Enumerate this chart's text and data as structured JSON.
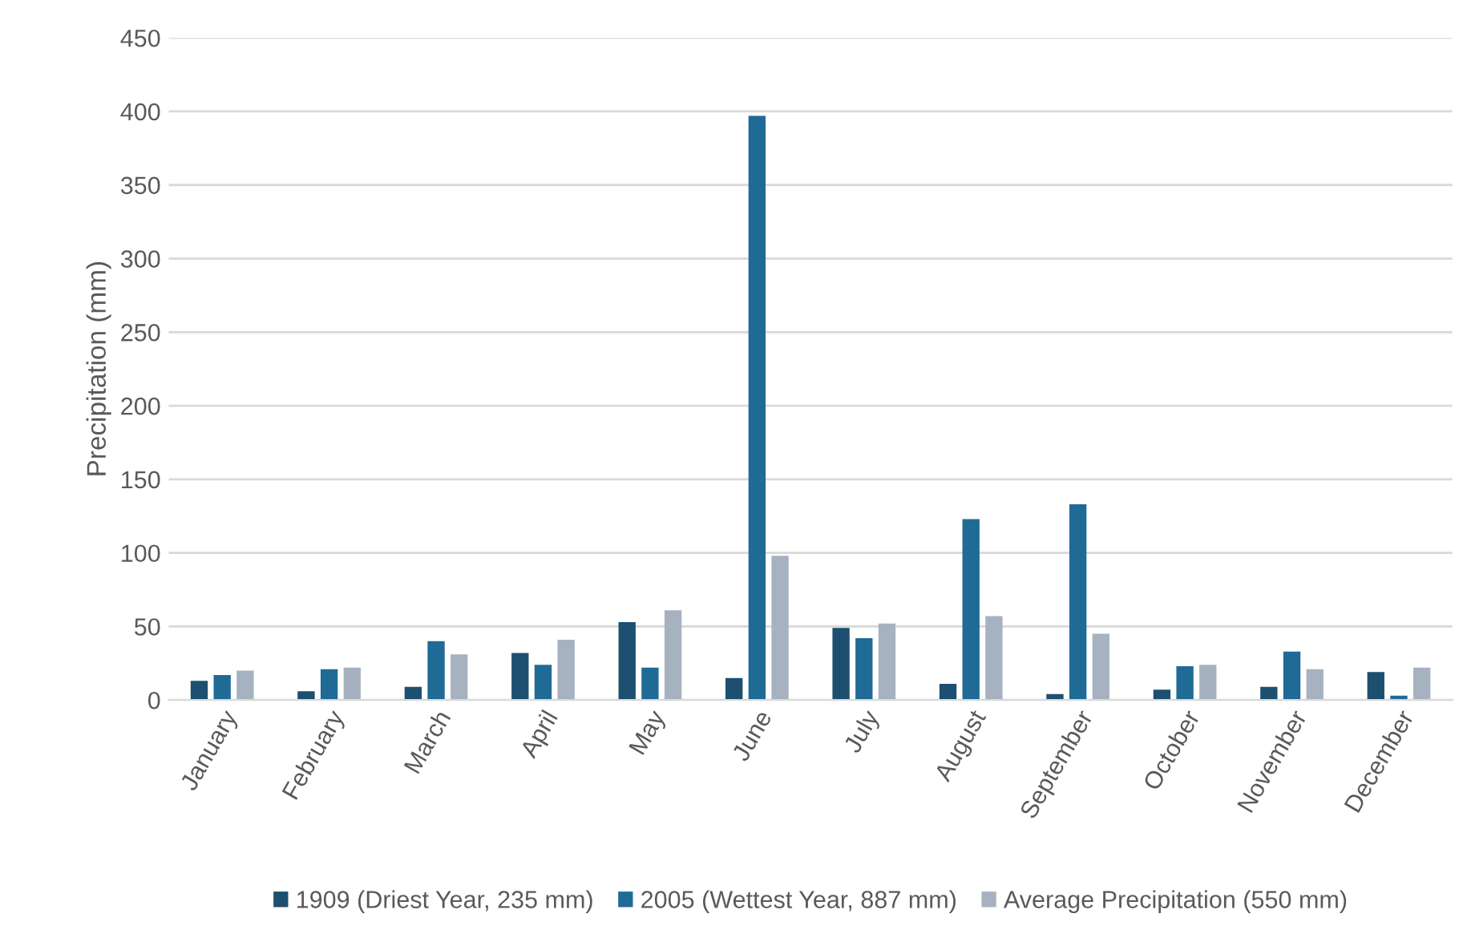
{
  "chart_data": {
    "type": "bar",
    "ylabel": "Precipitation (mm)",
    "categories": [
      "January",
      "February",
      "March",
      "April",
      "May",
      "June",
      "July",
      "August",
      "September",
      "October",
      "November",
      "December"
    ],
    "series": [
      {
        "name": "1909 (Driest Year, 235 mm)",
        "color": "#1d4f70",
        "values": [
          13,
          6,
          9,
          32,
          53,
          15,
          49,
          11,
          4,
          7,
          9,
          19
        ]
      },
      {
        "name": "2005 (Wettest Year, 887 mm)",
        "color": "#1f6b96",
        "values": [
          17,
          21,
          40,
          24,
          22,
          397,
          42,
          123,
          133,
          23,
          33,
          3
        ]
      },
      {
        "name": "Average Precipitation (550 mm)",
        "color": "#a7b2c0",
        "values": [
          20,
          22,
          31,
          41,
          61,
          98,
          52,
          57,
          45,
          24,
          21,
          22
        ]
      }
    ],
    "ylim": [
      0,
      450
    ],
    "yticks": [
      0,
      50,
      100,
      150,
      200,
      250,
      300,
      350,
      400,
      450
    ],
    "grid": "y",
    "legend": "bottom"
  }
}
